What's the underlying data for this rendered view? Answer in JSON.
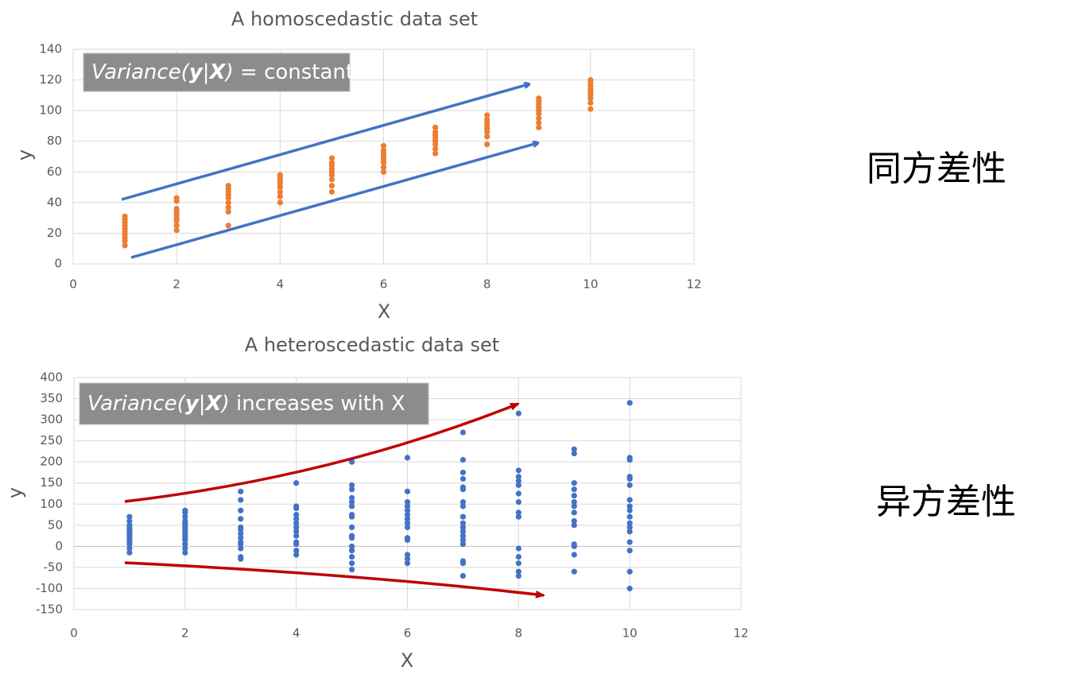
{
  "chart_data": [
    {
      "type": "scatter",
      "title": "A homoscedastic data set",
      "x_label": "X",
      "y_label": "y",
      "annotation": [
        {
          "text": "Variance(",
          "italic": true
        },
        {
          "text": "y",
          "italic": true,
          "bold": true
        },
        {
          "text": "|",
          "italic": true
        },
        {
          "text": "X",
          "italic": true,
          "bold": true
        },
        {
          "text": ")",
          "italic": true
        },
        {
          "text": " = constant"
        }
      ],
      "color": "#ed7d31",
      "grid": true,
      "xlim": [
        0,
        12
      ],
      "xticks": [
        0,
        2,
        4,
        6,
        8,
        10,
        12
      ],
      "ylim": [
        0,
        140
      ],
      "yticks": [
        0,
        20,
        40,
        60,
        80,
        100,
        120,
        140
      ],
      "x": [
        1,
        1,
        1,
        1,
        1,
        1,
        1,
        1,
        1,
        1,
        2,
        2,
        2,
        2,
        2,
        2,
        2,
        2,
        2,
        3,
        3,
        3,
        3,
        3,
        3,
        3,
        3,
        3,
        4,
        4,
        4,
        4,
        4,
        4,
        4,
        4,
        5,
        5,
        5,
        5,
        5,
        5,
        5,
        5,
        5,
        6,
        6,
        6,
        6,
        6,
        6,
        6,
        6,
        7,
        7,
        7,
        7,
        7,
        7,
        7,
        7,
        8,
        8,
        8,
        8,
        8,
        8,
        8,
        8,
        9,
        9,
        9,
        9,
        9,
        9,
        9,
        9,
        9,
        10,
        10,
        10,
        10,
        10,
        10,
        10,
        10,
        10
      ],
      "values": [
        12,
        15,
        17,
        19,
        21,
        23,
        25,
        27,
        29,
        31,
        22,
        25,
        28,
        30,
        32,
        34,
        36,
        41,
        43,
        25,
        34,
        37,
        40,
        43,
        45,
        47,
        49,
        51,
        40,
        44,
        47,
        50,
        52,
        54,
        56,
        58,
        47,
        51,
        55,
        58,
        60,
        62,
        64,
        66,
        69,
        60,
        63,
        66,
        68,
        70,
        72,
        74,
        77,
        72,
        75,
        78,
        80,
        82,
        84,
        86,
        89,
        78,
        83,
        86,
        88,
        90,
        92,
        94,
        97,
        89,
        92,
        95,
        98,
        100,
        102,
        104,
        106,
        108,
        101,
        105,
        108,
        110,
        112,
        114,
        116,
        118,
        120
      ]
    },
    {
      "type": "scatter",
      "title": "A heteroscedastic data set",
      "x_label": "X",
      "y_label": "y",
      "annotation": [
        {
          "text": "Variance(",
          "italic": true
        },
        {
          "text": "y",
          "italic": true,
          "bold": true
        },
        {
          "text": "|",
          "italic": true
        },
        {
          "text": "X",
          "italic": true,
          "bold": true
        },
        {
          "text": ")",
          "italic": true
        },
        {
          "text": " increases with X"
        }
      ],
      "color": "#4472c4",
      "grid": true,
      "xlim": [
        0,
        12
      ],
      "xticks": [
        0,
        2,
        4,
        6,
        8,
        10,
        12
      ],
      "ylim": [
        -150,
        400
      ],
      "yticks": [
        -150,
        -100,
        -50,
        0,
        50,
        100,
        150,
        200,
        250,
        300,
        350,
        400
      ],
      "x": [
        1,
        1,
        1,
        1,
        1,
        1,
        1,
        1,
        1,
        1,
        1,
        1,
        1,
        1,
        2,
        2,
        2,
        2,
        2,
        2,
        2,
        2,
        2,
        2,
        2,
        2,
        2,
        2,
        2,
        2,
        3,
        3,
        3,
        3,
        3,
        3,
        3,
        3,
        3,
        3,
        3,
        3,
        3,
        4,
        4,
        4,
        4,
        4,
        4,
        4,
        4,
        4,
        4,
        4,
        4,
        4,
        5,
        5,
        5,
        5,
        5,
        5,
        5,
        5,
        5,
        5,
        5,
        5,
        5,
        5,
        5,
        5,
        6,
        6,
        6,
        6,
        6,
        6,
        6,
        6,
        6,
        6,
        6,
        6,
        6,
        6,
        7,
        7,
        7,
        7,
        7,
        7,
        7,
        7,
        7,
        7,
        7,
        7,
        7,
        7,
        7,
        7,
        7,
        7,
        8,
        8,
        8,
        8,
        8,
        8,
        8,
        8,
        8,
        8,
        8,
        8,
        8,
        8,
        9,
        9,
        9,
        9,
        9,
        9,
        9,
        9,
        9,
        9,
        9,
        9,
        9,
        9,
        10,
        10,
        10,
        10,
        10,
        10,
        10,
        10,
        10,
        10,
        10,
        10,
        10,
        10,
        10,
        10,
        10
      ],
      "values": [
        -15,
        -5,
        5,
        10,
        15,
        20,
        25,
        30,
        35,
        40,
        45,
        50,
        60,
        70,
        -15,
        -5,
        5,
        15,
        20,
        25,
        30,
        35,
        40,
        45,
        50,
        55,
        60,
        70,
        80,
        85,
        -30,
        -25,
        -5,
        5,
        10,
        20,
        30,
        40,
        45,
        65,
        85,
        110,
        130,
        -20,
        -10,
        5,
        10,
        25,
        35,
        45,
        55,
        65,
        75,
        90,
        95,
        150,
        -55,
        -40,
        -25,
        -10,
        0,
        20,
        25,
        45,
        70,
        75,
        95,
        105,
        115,
        135,
        145,
        200,
        -40,
        -30,
        -20,
        15,
        20,
        45,
        55,
        65,
        75,
        85,
        95,
        105,
        130,
        210,
        -70,
        -40,
        -35,
        5,
        15,
        25,
        35,
        45,
        55,
        70,
        95,
        105,
        135,
        140,
        160,
        175,
        205,
        270,
        -70,
        -60,
        -40,
        -25,
        -5,
        70,
        80,
        105,
        125,
        145,
        155,
        165,
        180,
        315,
        -60,
        -20,
        0,
        5,
        50,
        60,
        80,
        95,
        105,
        120,
        135,
        150,
        220,
        230,
        -100,
        -60,
        -10,
        10,
        35,
        45,
        55,
        70,
        85,
        95,
        110,
        145,
        160,
        165,
        205,
        210,
        340
      ]
    }
  ],
  "side_labels": [
    "同方差性",
    "异方差性"
  ]
}
